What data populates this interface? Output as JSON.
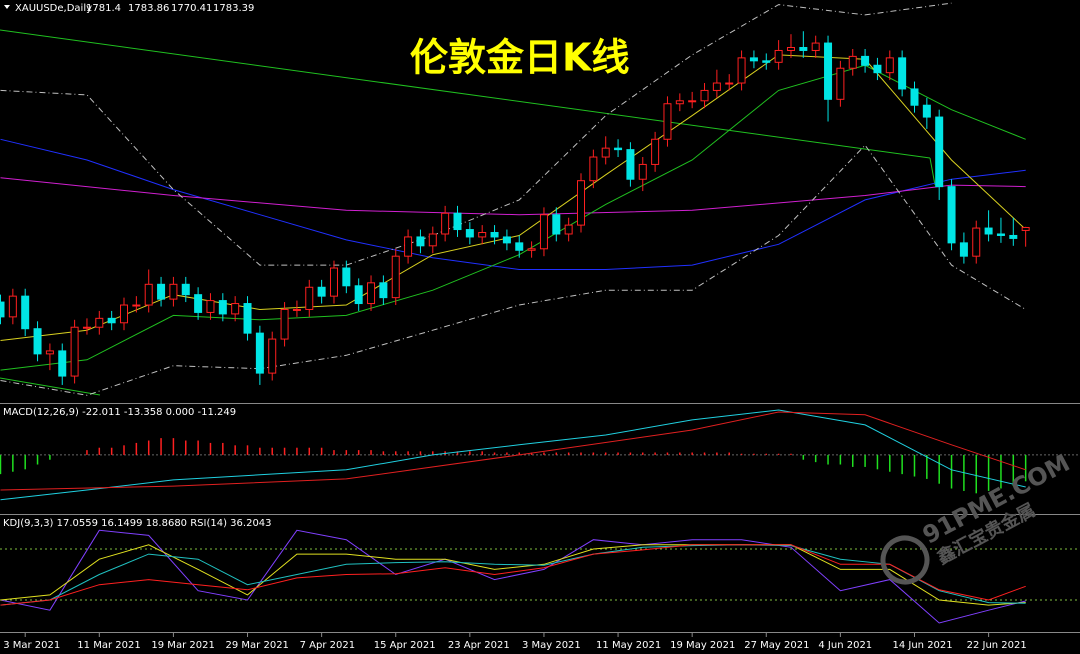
{
  "chart_data": [
    {
      "type": "candlestick",
      "title": "伦敦金日K线",
      "symbol": "XAUUSDe,Daily",
      "watermark": "91PME.COM",
      "watermark_sub": "鑫汇宝贵金属",
      "xlim": [
        -0.04,
        87.4
      ],
      "ylim": [
        1664.8,
        1937.1
      ],
      "up_color": "#ff2020",
      "down_color": "#00e5e5",
      "open": [
        1733,
        1723,
        1737,
        1715,
        1698,
        1700,
        1683,
        1716,
        1716,
        1722,
        1719,
        1731,
        1731,
        1745,
        1735,
        1745,
        1738,
        1726,
        1734,
        1725,
        1732,
        1712,
        1685,
        1708,
        1728,
        1728,
        1743,
        1737,
        1756,
        1744,
        1732,
        1746,
        1736,
        1764,
        1777,
        1771,
        1779,
        1793,
        1782,
        1777,
        1780,
        1777,
        1773,
        1768,
        1769,
        1792,
        1779,
        1785,
        1815,
        1831,
        1837,
        1836,
        1816,
        1826,
        1843,
        1867,
        1869,
        1869,
        1876,
        1881,
        1881,
        1898,
        1896,
        1895,
        1903,
        1905,
        1903,
        1908,
        1870,
        1891,
        1899,
        1893,
        1888,
        1898,
        1877,
        1866,
        1858,
        1811,
        1773,
        1764,
        1783,
        1779,
        1778,
        1781.4
      ],
      "high": [
        1738,
        1742,
        1742,
        1720,
        1705,
        1705,
        1721,
        1722,
        1727,
        1727,
        1736,
        1737,
        1755,
        1750,
        1750,
        1750,
        1743,
        1739,
        1739,
        1737,
        1737,
        1717,
        1713,
        1733,
        1734,
        1748,
        1748,
        1761,
        1761,
        1749,
        1751,
        1751,
        1769,
        1782,
        1782,
        1784,
        1798,
        1798,
        1787,
        1785,
        1785,
        1782,
        1778,
        1774,
        1797,
        1797,
        1790,
        1820,
        1836,
        1845,
        1843,
        1841,
        1831,
        1848,
        1872,
        1874,
        1875,
        1881,
        1890,
        1887,
        1903,
        1903,
        1901,
        1910,
        1914,
        1916,
        1913,
        1913,
        1896,
        1904,
        1904,
        1898,
        1903,
        1903,
        1882,
        1871,
        1863,
        1816,
        1780,
        1788,
        1795,
        1790,
        1790,
        1783.86
      ],
      "low": [
        1718,
        1718,
        1710,
        1693,
        1687,
        1677,
        1678,
        1711,
        1711,
        1714,
        1714,
        1726,
        1726,
        1730,
        1730,
        1733,
        1721,
        1721,
        1720,
        1720,
        1707,
        1677,
        1680,
        1703,
        1723,
        1723,
        1732,
        1732,
        1739,
        1727,
        1727,
        1731,
        1731,
        1759,
        1766,
        1766,
        1774,
        1777,
        1772,
        1772,
        1772,
        1768,
        1763,
        1763,
        1764,
        1774,
        1774,
        1780,
        1810,
        1826,
        1831,
        1811,
        1808,
        1821,
        1838,
        1862,
        1864,
        1864,
        1871,
        1876,
        1876,
        1891,
        1890,
        1890,
        1898,
        1898,
        1898,
        1855,
        1865,
        1886,
        1888,
        1883,
        1883,
        1872,
        1861,
        1850,
        1802,
        1768,
        1759,
        1759,
        1774,
        1773,
        1771,
        1770.41
      ],
      "close": [
        1723,
        1737,
        1715,
        1698,
        1700,
        1683,
        1716,
        1716,
        1722,
        1719,
        1731,
        1731,
        1745,
        1735,
        1745,
        1738,
        1726,
        1734,
        1725,
        1732,
        1712,
        1685,
        1708,
        1728,
        1728,
        1743,
        1737,
        1756,
        1744,
        1732,
        1746,
        1736,
        1764,
        1777,
        1771,
        1779,
        1793,
        1782,
        1777,
        1780,
        1777,
        1773,
        1768,
        1769,
        1792,
        1779,
        1785,
        1815,
        1831,
        1837,
        1836,
        1816,
        1826,
        1843,
        1867,
        1869,
        1869,
        1876,
        1881,
        1881,
        1898,
        1896,
        1895,
        1903,
        1905,
        1903,
        1908,
        1870,
        1891,
        1899,
        1893,
        1888,
        1898,
        1877,
        1866,
        1858,
        1811,
        1773,
        1764,
        1783,
        1779,
        1778,
        1776,
        1783.39
      ],
      "series": [
        {
          "color": "#2030ff",
          "x": [
            0,
            7,
            14,
            21,
            28,
            35,
            42,
            49,
            56,
            63,
            70,
            77,
            83
          ],
          "values": [
            1843,
            1829,
            1809,
            1792,
            1775,
            1763,
            1755,
            1755,
            1758,
            1772,
            1802,
            1816,
            1822
          ]
        },
        {
          "color": "#d020d0",
          "x": [
            0,
            14,
            28,
            42,
            56,
            70,
            77,
            83
          ],
          "values": [
            1817,
            1805,
            1795,
            1792,
            1795,
            1805,
            1812,
            1811
          ]
        },
        {
          "color": "#20c020",
          "x": [
            0,
            7,
            14,
            21,
            28,
            35,
            42,
            49,
            56,
            63,
            70,
            77,
            83
          ],
          "values": [
            1687,
            1694,
            1724,
            1721,
            1724,
            1741,
            1765,
            1799,
            1829,
            1876,
            1893,
            1863,
            1843
          ]
        },
        {
          "color": "#d8d020",
          "x": [
            0,
            7,
            14,
            21,
            28,
            35,
            42,
            49,
            56,
            63,
            70,
            77,
            83
          ],
          "values": [
            1707,
            1714,
            1738,
            1728,
            1731,
            1765,
            1778,
            1819,
            1859,
            1900,
            1897,
            1829,
            1782
          ]
        },
        {
          "color": "#c0c0c0",
          "dash": true,
          "x": [
            0,
            7,
            14,
            21,
            28,
            35,
            42,
            49,
            56,
            63,
            70,
            77
          ],
          "values": [
            1876,
            1873,
            1809,
            1758,
            1758,
            1778,
            1802,
            1859,
            1900,
            1934,
            1927,
            1935
          ]
        },
        {
          "color": "#c0c0c0",
          "dash": true,
          "x": [
            0,
            7,
            14,
            21,
            28,
            35,
            42,
            49,
            56,
            63,
            70,
            77,
            83
          ],
          "values": [
            1680,
            1670,
            1690,
            1688,
            1697,
            1714,
            1731,
            1741,
            1741,
            1778,
            1839,
            1758,
            1728
          ]
        }
      ],
      "xticks": [
        {
          "value": 2,
          "label": "3 Mar 2021"
        },
        {
          "value": 8,
          "label": "11 Mar 2021"
        },
        {
          "value": 14,
          "label": "19 Mar 2021"
        },
        {
          "value": 20,
          "label": "29 Mar 2021"
        },
        {
          "value": 26,
          "label": "7 Apr 2021"
        },
        {
          "value": 32,
          "label": "15 Apr 2021"
        },
        {
          "value": 38,
          "label": "23 Apr 2021"
        },
        {
          "value": 44,
          "label": "3 May 2021"
        },
        {
          "value": 50,
          "label": "11 May 2021"
        },
        {
          "value": 56,
          "label": "19 May 2021"
        },
        {
          "value": 62,
          "label": "27 May 2021"
        },
        {
          "value": 68,
          "label": "4 Jun 2021"
        },
        {
          "value": 74,
          "label": "14 Jun 2021"
        },
        {
          "value": 80,
          "label": "22 Jun 2021"
        }
      ]
    },
    {
      "type": "macd",
      "label": "MACD(12,26,9) -22.011 -13.358 0.000 -11.249",
      "ylim": [
        -24.2,
        20.8
      ],
      "up_color": "#ff2020",
      "down_color": "#20e020",
      "histogram": [
        -8,
        -7,
        -6,
        -4,
        -2,
        0,
        0,
        2,
        3,
        3,
        4,
        5,
        6,
        7,
        7,
        6,
        6,
        5,
        5,
        4,
        4,
        3,
        3,
        3,
        3,
        3,
        3,
        2,
        2,
        2,
        2,
        1.5,
        1.5,
        1.5,
        1.5,
        1.5,
        1.5,
        1.5,
        1.5,
        1.5,
        1,
        1,
        1,
        1,
        1,
        1,
        1,
        1,
        1,
        1,
        1,
        1,
        1,
        1,
        1,
        1,
        1,
        1,
        1,
        1,
        0.5,
        0.5,
        0.5,
        0.5,
        0.5,
        -2,
        -3,
        -4,
        -4,
        -5,
        -5,
        -6,
        -7,
        -8,
        -9,
        -10,
        -12,
        -14,
        -15,
        -16,
        -15,
        -14,
        -13,
        -11
      ],
      "series": [
        {
          "color": "#20d0e0",
          "x": [
            0,
            7,
            14,
            21,
            28,
            35,
            42,
            49,
            56,
            63,
            70,
            77,
            83
          ],
          "values": [
            -18.7,
            -14.6,
            -10.4,
            -8.3,
            -6.2,
            0,
            4.2,
            8.3,
            14.6,
            18.7,
            12.5,
            -6.2,
            -13.358
          ]
        },
        {
          "color": "#e02020",
          "x": [
            0,
            14,
            28,
            42,
            56,
            63,
            70,
            77,
            83
          ],
          "values": [
            -14.6,
            -13,
            -10,
            0,
            10.4,
            17.9,
            16.7,
            4.2,
            -6.2
          ]
        }
      ]
    },
    {
      "type": "kdj",
      "label": "KDJ(9,3,3) 17.0559 16.1499 18.8680  RSI(14) 36.2043",
      "ylim": [
        -17.6,
        120
      ],
      "levels": [
        80,
        20
      ],
      "series": [
        {
          "color": "#8040ff",
          "x": [
            0,
            4,
            8,
            12,
            16,
            20,
            24,
            28,
            32,
            36,
            40,
            44,
            48,
            52,
            56,
            60,
            64,
            68,
            72,
            76,
            80,
            83
          ],
          "values": [
            20,
            8,
            102,
            96,
            31,
            20,
            102,
            91,
            50,
            68,
            44,
            56,
            91,
            85,
            91,
            91,
            82,
            31,
            44,
            -7,
            8,
            18.868
          ]
        },
        {
          "color": "#e0e020",
          "x": [
            0,
            4,
            8,
            12,
            16,
            20,
            24,
            28,
            32,
            36,
            40,
            44,
            48,
            52,
            56,
            60,
            64,
            68,
            72,
            76,
            80,
            83
          ],
          "values": [
            20,
            26,
            68,
            85,
            56,
            26,
            74,
            74,
            68,
            68,
            56,
            62,
            80,
            85,
            85,
            85,
            85,
            56,
            56,
            20,
            14,
            17.0559
          ]
        },
        {
          "color": "#20c0c0",
          "x": [
            0,
            4,
            8,
            12,
            16,
            20,
            24,
            28,
            32,
            36,
            40,
            44,
            48,
            52,
            56,
            60,
            64,
            68,
            72,
            76,
            80,
            83
          ],
          "values": [
            14,
            20,
            50,
            74,
            68,
            38,
            50,
            62,
            64,
            65,
            62,
            61,
            74,
            82,
            84,
            85,
            84,
            68,
            62,
            31,
            17,
            16.1499
          ]
        },
        {
          "color": "#ff2020",
          "x": [
            0,
            4,
            8,
            12,
            16,
            20,
            24,
            28,
            32,
            36,
            40,
            44,
            48,
            52,
            56,
            60,
            64,
            68,
            72,
            76,
            80,
            83
          ],
          "values": [
            14,
            20,
            38,
            44,
            38,
            32,
            46,
            50,
            51,
            58,
            50,
            58,
            74,
            79,
            85,
            85,
            85,
            62,
            62,
            32,
            20,
            36.2043
          ]
        }
      ]
    }
  ]
}
